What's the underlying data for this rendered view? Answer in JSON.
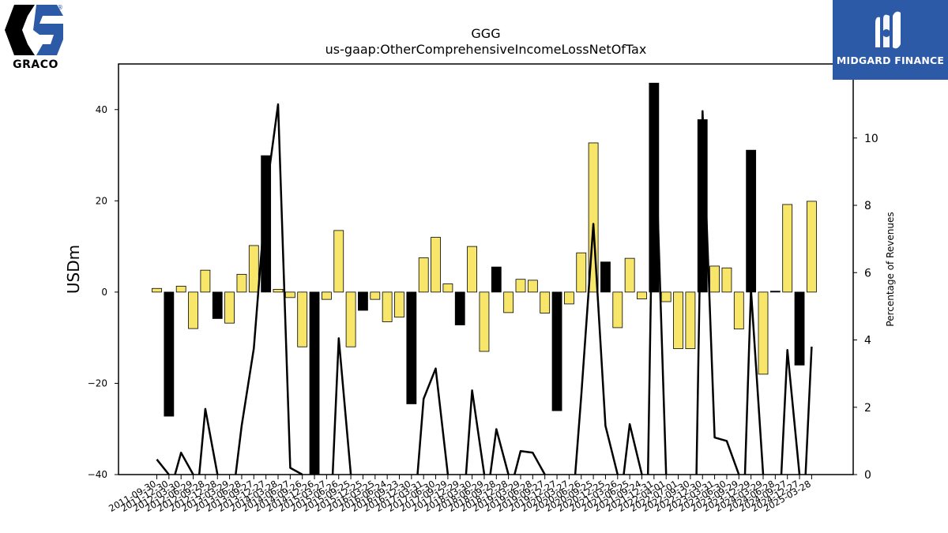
{
  "logos": {
    "left_text": "GRACO",
    "right_text": "MIDGARD FINANCE"
  },
  "chart_data": {
    "type": "bar",
    "title": "GGG",
    "subtitle": "us-gaap:OtherComprehensiveIncomeLossNetOfTax",
    "ylabel": "USDm",
    "y2label": "Percentage of Revenues",
    "ylim": [
      -40,
      50
    ],
    "y2lim": [
      0,
      12.2
    ],
    "yticks": [
      -40,
      -20,
      0,
      20,
      40
    ],
    "y2ticks": [
      0,
      2,
      4,
      6,
      8,
      10
    ],
    "categories": [
      "2011-09-30",
      "2011-12-30",
      "2012-03-30",
      "2012-06-29",
      "2012-09-28",
      "2012-12-28",
      "2013-03-29",
      "2013-06-28",
      "2013-09-27",
      "2013-12-27",
      "2014-03-28",
      "2014-06-27",
      "2014-09-26",
      "2014-12-26",
      "2015-03-27",
      "2015-06-26",
      "2015-09-25",
      "2015-12-25",
      "2016-03-25",
      "2016-06-24",
      "2016-09-23",
      "2016-12-30",
      "2017-03-31",
      "2017-06-30",
      "2017-09-29",
      "2017-12-29",
      "2018-03-30",
      "2018-06-29",
      "2018-09-28",
      "2018-12-28",
      "2019-03-29",
      "2019-06-28",
      "2019-09-27",
      "2019-12-27",
      "2020-03-27",
      "2020-06-26",
      "2020-09-25",
      "2020-12-25",
      "2021-03-26",
      "2021-06-25",
      "2021-09-24",
      "2021-12-31",
      "2022-04-01",
      "2022-07-01",
      "2022-09-30",
      "2022-12-30",
      "2023-03-31",
      "2023-06-30",
      "2023-09-29",
      "2023-12-29",
      "2024-03-29",
      "2024-06-28",
      "2024-09-27",
      "2024-12-27",
      "2025-03-28"
    ],
    "values": [
      0.8,
      -27.2,
      1.3,
      -8,
      4.8,
      -5.8,
      -6.8,
      3.9,
      10.2,
      29.9,
      0.6,
      -1.2,
      -12,
      -40,
      -1.6,
      13.5,
      -12,
      -4,
      -1.6,
      -6.5,
      -5.5,
      -24.5,
      7.5,
      12,
      1.8,
      -7.2,
      10,
      -13,
      5.5,
      -4.5,
      2.8,
      2.6,
      -4.6,
      -26,
      -2.6,
      8.6,
      32.7,
      6.6,
      -7.8,
      7.4,
      -1.5,
      45.8,
      -2.1,
      -12.4,
      -12.4,
      37.8,
      5.7,
      5.3,
      -8.1,
      31.1,
      -18,
      0.2,
      19.2,
      -16,
      19.9
    ],
    "bar_colors": [
      "yellow",
      "black",
      "yellow",
      "yellow",
      "yellow",
      "black",
      "yellow",
      "yellow",
      "yellow",
      "black",
      "yellow",
      "yellow",
      "yellow",
      "black",
      "yellow",
      "yellow",
      "yellow",
      "black",
      "yellow",
      "yellow",
      "yellow",
      "black",
      "yellow",
      "yellow",
      "yellow",
      "black",
      "yellow",
      "yellow",
      "black",
      "yellow",
      "yellow",
      "yellow",
      "yellow",
      "black",
      "yellow",
      "yellow",
      "yellow",
      "black",
      "yellow",
      "yellow",
      "yellow",
      "black",
      "yellow",
      "yellow",
      "yellow",
      "black",
      "yellow",
      "yellow",
      "yellow",
      "black",
      "yellow",
      "black",
      "yellow",
      "black",
      "yellow"
    ],
    "pct_series": [
      0.45,
      null,
      0.65,
      null,
      1.95,
      null,
      null,
      1.45,
      3.75,
      8.3,
      11,
      0.2,
      null,
      null,
      null,
      4.05,
      null,
      null,
      null,
      null,
      null,
      null,
      2.25,
      3.15,
      null,
      null,
      2.5,
      null,
      1.35,
      null,
      0.7,
      0.65,
      null,
      null,
      null,
      2.35,
      7.45,
      1.45,
      null,
      1.5,
      null,
      11.2,
      null,
      null,
      null,
      10.8,
      1.1,
      1.0,
      null,
      5.5,
      null,
      null,
      3.7,
      null,
      3.8
    ],
    "colors": {
      "bar_positive": "#f7e66a",
      "bar_black": "#000000",
      "line": "#000000",
      "brand_blue": "#2d5aa6"
    }
  }
}
